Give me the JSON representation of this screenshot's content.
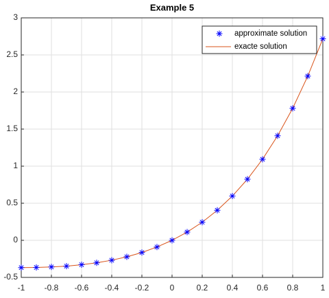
{
  "chart_data": {
    "type": "line",
    "title": "Example 5",
    "x": [
      -1,
      -0.9,
      -0.8,
      -0.7,
      -0.6,
      -0.5,
      -0.4,
      -0.3,
      -0.2,
      -0.1,
      0,
      0.1,
      0.2,
      0.3,
      0.4,
      0.5,
      0.6,
      0.7,
      0.8,
      0.9,
      1
    ],
    "series": [
      {
        "name": "approximate solution",
        "color": "#0000ff",
        "marker": "asterisk",
        "values": [
          -0.368,
          -0.366,
          -0.359,
          -0.348,
          -0.329,
          -0.303,
          -0.268,
          -0.222,
          -0.164,
          -0.09,
          0,
          0.111,
          0.244,
          0.405,
          0.597,
          0.824,
          1.093,
          1.41,
          1.78,
          2.214,
          2.718
        ]
      },
      {
        "name": "exacte solution",
        "color": "#d95319",
        "marker": "none",
        "values": [
          -0.368,
          -0.366,
          -0.359,
          -0.348,
          -0.329,
          -0.303,
          -0.268,
          -0.222,
          -0.164,
          -0.09,
          0,
          0.111,
          0.244,
          0.405,
          0.597,
          0.824,
          1.093,
          1.41,
          1.78,
          2.214,
          2.718
        ]
      }
    ],
    "xlim": [
      -1,
      1
    ],
    "xticks": [
      -1,
      -0.8,
      -0.6,
      -0.4,
      -0.2,
      0,
      0.2,
      0.4,
      0.6,
      0.8,
      1
    ],
    "ylim": [
      -0.5,
      3
    ],
    "yticks": [
      -0.5,
      0,
      0.5,
      1,
      1.5,
      2,
      2.5,
      3
    ],
    "grid": true,
    "legend": "top-right"
  }
}
